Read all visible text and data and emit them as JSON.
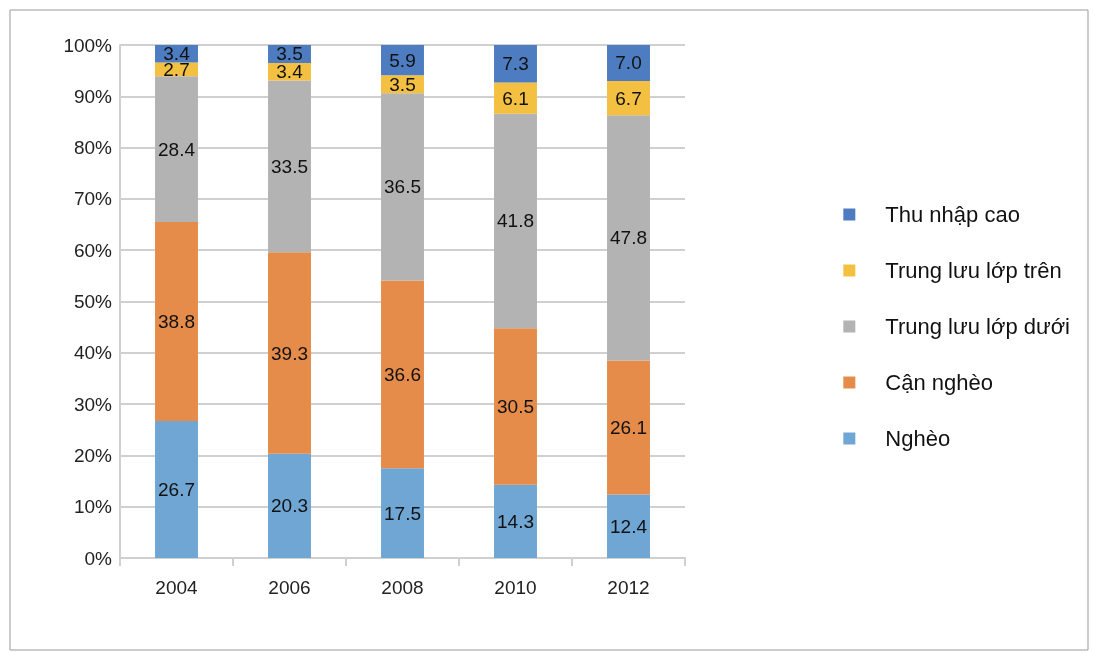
{
  "chart_data": {
    "type": "bar",
    "stacked": true,
    "data_labels": true,
    "grid": "y",
    "legend": "right",
    "categories": [
      "2004",
      "2006",
      "2008",
      "2010",
      "2012"
    ],
    "ylim": [
      0,
      100
    ],
    "yticks": [
      {
        "value": 0,
        "label": "0%"
      },
      {
        "value": 10,
        "label": "10%"
      },
      {
        "value": 20,
        "label": "20%"
      },
      {
        "value": 30,
        "label": "30%"
      },
      {
        "value": 40,
        "label": "40%"
      },
      {
        "value": 50,
        "label": "50%"
      },
      {
        "value": 60,
        "label": "60%"
      },
      {
        "value": 70,
        "label": "70%"
      },
      {
        "value": 80,
        "label": "80%"
      },
      {
        "value": 90,
        "label": "90%"
      },
      {
        "value": 100,
        "label": "100%"
      }
    ],
    "series": [
      {
        "name": "Nghèo",
        "color": "#6fa6d3",
        "values": [
          26.7,
          20.3,
          17.5,
          14.3,
          12.4
        ]
      },
      {
        "name": "Cận nghèo",
        "color": "#e68c4b",
        "values": [
          38.8,
          39.3,
          36.6,
          30.5,
          26.1
        ]
      },
      {
        "name": "Trung lưu lớp dưới",
        "color": "#b3b3b3",
        "values": [
          28.4,
          33.5,
          36.5,
          41.8,
          47.8
        ]
      },
      {
        "name": "Trung lưu lớp trên",
        "color": "#f4c042",
        "values": [
          2.7,
          3.4,
          3.5,
          6.1,
          6.7
        ]
      },
      {
        "name": "Thu nhập cao",
        "color": "#4d7cc0",
        "values": [
          3.4,
          3.5,
          5.9,
          7.3,
          7.0
        ],
        "value_labels": [
          "3.4",
          "3.5",
          "5.9",
          "7.3",
          "7.0"
        ]
      }
    ]
  }
}
